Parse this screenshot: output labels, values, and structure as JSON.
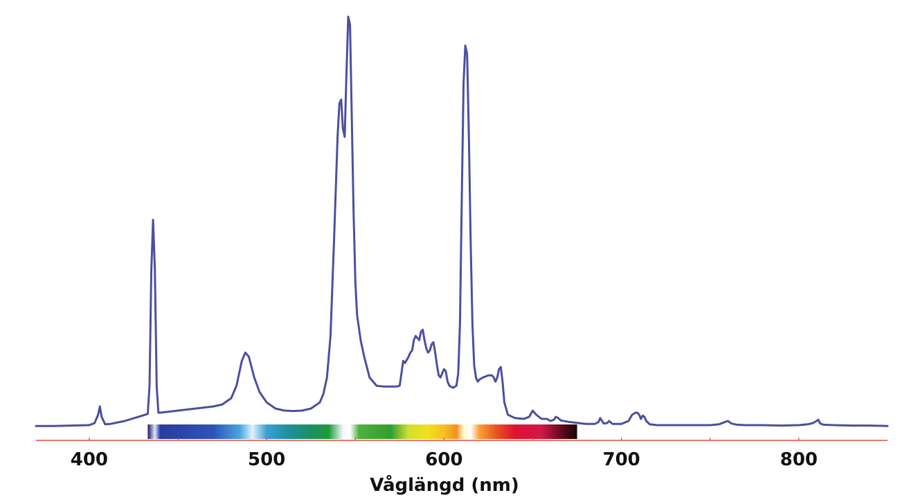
{
  "chart_data": {
    "type": "line",
    "title": "",
    "xlabel": "Våglängd (nm)",
    "ylabel": "",
    "xlim": [
      370,
      850
    ],
    "ylim": [
      0,
      100
    ],
    "x_ticks": [
      400,
      500,
      600,
      700,
      800
    ],
    "x_minor_ticks": [
      450,
      550,
      650,
      750
    ],
    "grid": false,
    "legend": "none",
    "colors": {
      "line": "#4a4fa0",
      "axis": "#e0483a",
      "text": "#111111"
    },
    "spectrum_band": {
      "range": [
        433,
        675
      ],
      "stops": [
        {
          "nm": 433,
          "color": "#1a1a60"
        },
        {
          "nm": 437,
          "color": "#e0e8ff"
        },
        {
          "nm": 440,
          "color": "#2b3ba0"
        },
        {
          "nm": 470,
          "color": "#2c54b8"
        },
        {
          "nm": 485,
          "color": "#4aa6e0"
        },
        {
          "nm": 492,
          "color": "#e0f2ff"
        },
        {
          "nm": 500,
          "color": "#3aa0d0"
        },
        {
          "nm": 512,
          "color": "#1f8fa0"
        },
        {
          "nm": 525,
          "color": "#1a9060"
        },
        {
          "nm": 535,
          "color": "#1f9a3a"
        },
        {
          "nm": 543,
          "color": "#f0f8ff"
        },
        {
          "nm": 547,
          "color": "#ffffff"
        },
        {
          "nm": 552,
          "color": "#50b040"
        },
        {
          "nm": 570,
          "color": "#2f9f30"
        },
        {
          "nm": 580,
          "color": "#d0e030"
        },
        {
          "nm": 590,
          "color": "#f0e020"
        },
        {
          "nm": 600,
          "color": "#f7c020"
        },
        {
          "nm": 607,
          "color": "#f09020"
        },
        {
          "nm": 611,
          "color": "#fff6d0"
        },
        {
          "nm": 615,
          "color": "#ffffff"
        },
        {
          "nm": 620,
          "color": "#f7a030"
        },
        {
          "nm": 630,
          "color": "#e85020"
        },
        {
          "nm": 640,
          "color": "#e01030"
        },
        {
          "nm": 655,
          "color": "#d01848"
        },
        {
          "nm": 668,
          "color": "#500818"
        },
        {
          "nm": 675,
          "color": "#180408"
        }
      ]
    },
    "series": [
      {
        "x": [
          370,
          380,
          390,
          400,
          403,
          405,
          406,
          407,
          409,
          412,
          420,
          430,
          433,
          434,
          435,
          436,
          437,
          438,
          439,
          440,
          450,
          460,
          470,
          475,
          480,
          483,
          486,
          488,
          490,
          493,
          496,
          500,
          505,
          510,
          515,
          520,
          525,
          530,
          532,
          534,
          536,
          538,
          540,
          541,
          542,
          543,
          544,
          545,
          546,
          547,
          548,
          549,
          550,
          551,
          552,
          553,
          555,
          558,
          562,
          566,
          570,
          573,
          575,
          576,
          577,
          578,
          580,
          581,
          582,
          583,
          584,
          585,
          586,
          587,
          588,
          589,
          590,
          591,
          592,
          593,
          594,
          595,
          596,
          597,
          598,
          599,
          600,
          601,
          602,
          603,
          605,
          607,
          608,
          609,
          610,
          611,
          612,
          613,
          614,
          615,
          616,
          617,
          618,
          619,
          620,
          622,
          625,
          627,
          628,
          629,
          630,
          631,
          632,
          633,
          634,
          636,
          640,
          645,
          648,
          650,
          652,
          655,
          658,
          660,
          662,
          663,
          664,
          666,
          670,
          680,
          685,
          687,
          688,
          690,
          692,
          693,
          695,
          700,
          704,
          706,
          708,
          709,
          710,
          711,
          712,
          713,
          714,
          716,
          720,
          730,
          740,
          750,
          755,
          758,
          760,
          762,
          765,
          770,
          780,
          790,
          800,
          805,
          808,
          810,
          811,
          812,
          814,
          820,
          830,
          840,
          850
        ],
        "y": [
          0.3,
          0.3,
          0.4,
          0.5,
          1.0,
          3.0,
          5.0,
          2.5,
          0.7,
          0.8,
          1.5,
          2.8,
          3.2,
          10.0,
          38.0,
          50.0,
          38.0,
          10.0,
          3.5,
          3.5,
          4.0,
          4.5,
          5.0,
          5.5,
          7.0,
          10.0,
          16.0,
          18.0,
          17.0,
          12.0,
          8.5,
          6.0,
          4.5,
          4.0,
          3.9,
          4.0,
          4.5,
          6.0,
          8.0,
          12.0,
          22.0,
          45.0,
          70.0,
          78.0,
          79.0,
          72.0,
          70.0,
          85.0,
          99.0,
          97.0,
          75.0,
          52.0,
          35.0,
          27.0,
          24.0,
          21.0,
          17.0,
          12.0,
          10.0,
          9.8,
          9.8,
          9.8,
          10.0,
          13.0,
          16.0,
          15.5,
          17.0,
          18.0,
          18.5,
          21.0,
          22.0,
          21.5,
          21.0,
          23.0,
          23.5,
          21.0,
          19.0,
          18.0,
          18.5,
          20.0,
          20.5,
          18.0,
          15.0,
          12.5,
          12.0,
          13.0,
          14.0,
          13.5,
          11.0,
          10.0,
          9.5,
          10.0,
          13.0,
          25.0,
          55.0,
          83.0,
          92.0,
          90.0,
          70.0,
          45.0,
          25.0,
          15.0,
          12.0,
          11.0,
          11.5,
          12.0,
          12.5,
          12.5,
          12.0,
          11.0,
          12.0,
          14.0,
          14.5,
          11.0,
          6.0,
          3.0,
          2.2,
          2.0,
          2.5,
          4.0,
          3.0,
          2.0,
          2.0,
          1.5,
          1.8,
          2.5,
          2.3,
          1.6,
          1.3,
          0.8,
          0.8,
          1.2,
          2.2,
          0.9,
          1.0,
          1.5,
          0.8,
          0.8,
          1.5,
          3.0,
          3.5,
          3.5,
          3.0,
          2.0,
          2.8,
          2.5,
          1.5,
          0.7,
          0.5,
          0.5,
          0.5,
          0.5,
          0.7,
          1.2,
          1.5,
          0.9,
          0.6,
          0.5,
          0.5,
          0.4,
          0.5,
          0.7,
          1.0,
          1.5,
          1.8,
          0.9,
          0.6,
          0.5,
          0.4,
          0.4,
          0.3
        ]
      }
    ]
  }
}
